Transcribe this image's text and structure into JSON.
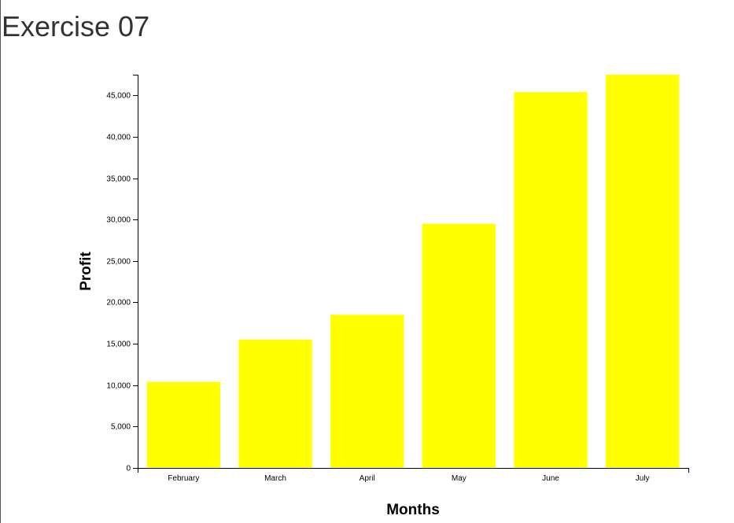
{
  "page": {
    "title": "Exercise 07"
  },
  "chart_data": {
    "type": "bar",
    "title": "",
    "xlabel": "Months",
    "ylabel": "Profit",
    "categories": [
      "February",
      "March",
      "April",
      "May",
      "June",
      "July"
    ],
    "values": [
      10400,
      15500,
      18500,
      29500,
      45400,
      47500
    ],
    "ylim": [
      0,
      47500
    ],
    "yticks": [
      0,
      5000,
      10000,
      15000,
      20000,
      25000,
      30000,
      35000,
      40000,
      45000
    ],
    "ytick_labels": [
      "0",
      "5,000",
      "10,000",
      "15,000",
      "20,000",
      "25,000",
      "30,000",
      "35,000",
      "40,000",
      "45,000"
    ],
    "grid": false,
    "legend": "none",
    "colors": {
      "bar": "#ffff00",
      "axis": "#000000",
      "text": "#000000"
    }
  }
}
